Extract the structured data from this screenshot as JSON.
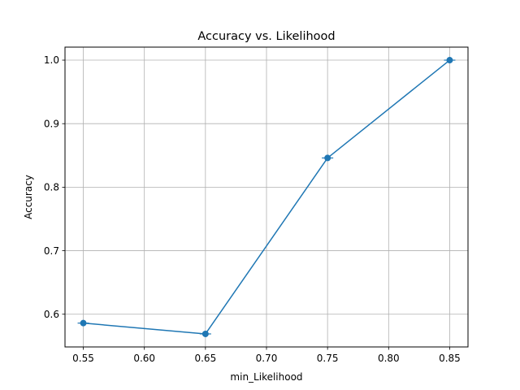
{
  "chart_data": {
    "type": "line",
    "title": "Accuracy vs. Likelihood",
    "xlabel": "min_Likelihood",
    "ylabel": "Accuracy",
    "x": [
      0.55,
      0.65,
      0.75,
      0.85
    ],
    "series": [
      {
        "values": [
          0.586,
          0.569,
          0.846,
          1.0
        ],
        "color": "#1f77b4",
        "marker": "circle"
      }
    ],
    "xlim": [
      0.535,
      0.865
    ],
    "ylim": [
      0.5485,
      1.0205
    ],
    "xticks": [
      "0.55",
      "0.60",
      "0.65",
      "0.70",
      "0.75",
      "0.80",
      "0.85"
    ],
    "yticks": [
      "0.6",
      "0.7",
      "0.8",
      "0.9",
      "1.0"
    ],
    "grid": true,
    "legend": "none"
  }
}
